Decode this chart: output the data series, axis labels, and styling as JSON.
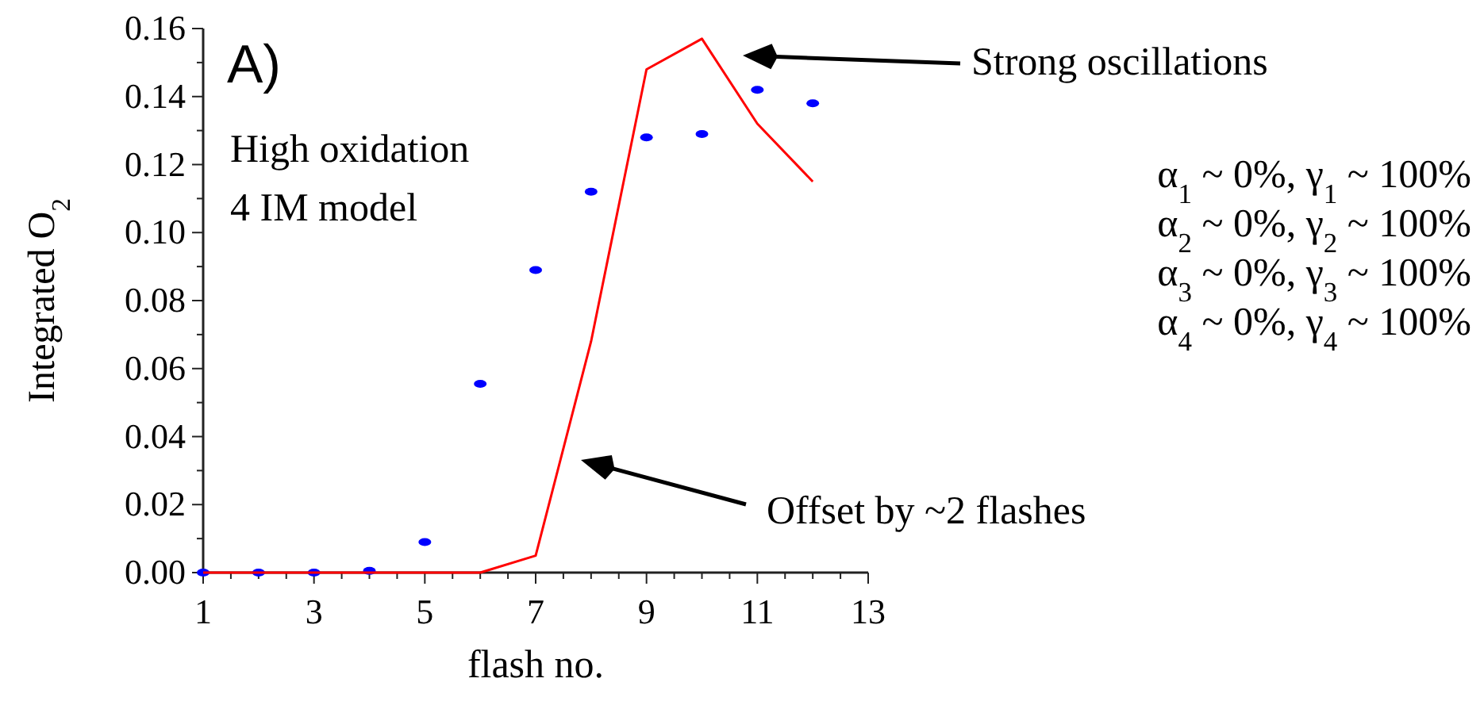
{
  "chart_data": {
    "type": "scatter",
    "xlabel": "flash no.",
    "ylabel": "Integrated O$_{2}$",
    "xlim": [
      1,
      13
    ],
    "ylim": [
      0,
      0.16
    ],
    "xticks": [
      1,
      {
        "value": 1.5,
        "label": null
      },
      {
        "value": 2,
        "label": null
      },
      {
        "value": 2.5,
        "label": null
      },
      3,
      {
        "value": 3.5,
        "label": null
      },
      {
        "value": 4,
        "label": null
      },
      {
        "value": 4.5,
        "label": null
      },
      5,
      {
        "value": 5.5,
        "label": null
      },
      {
        "value": 6,
        "label": null
      },
      {
        "value": 6.5,
        "label": null
      },
      7,
      {
        "value": 7.5,
        "label": null
      },
      {
        "value": 8,
        "label": null
      },
      {
        "value": 8.5,
        "label": null
      },
      9,
      {
        "value": 9.5,
        "label": null
      },
      {
        "value": 10,
        "label": null
      },
      {
        "value": 10.5,
        "label": null
      },
      11,
      {
        "value": 11.5,
        "label": null
      },
      {
        "value": 12,
        "label": null
      },
      {
        "value": 12.5,
        "label": null
      },
      13
    ],
    "yticks": [
      {
        "value": 0,
        "label": "0.00"
      },
      {
        "value": 0.01,
        "label": null
      },
      {
        "value": 0.02,
        "label": "0.02"
      },
      {
        "value": 0.03,
        "label": null
      },
      {
        "value": 0.04,
        "label": "0.04"
      },
      {
        "value": 0.05,
        "label": null
      },
      {
        "value": 0.06,
        "label": "0.06"
      },
      {
        "value": 0.07,
        "label": null
      },
      {
        "value": 0.08,
        "label": "0.08"
      },
      {
        "value": 0.09,
        "label": null
      },
      {
        "value": 0.1,
        "label": "0.10"
      },
      {
        "value": 0.11,
        "label": null
      },
      {
        "value": 0.12,
        "label": "0.12"
      },
      {
        "value": 0.13,
        "label": null
      },
      {
        "value": 0.14,
        "label": "0.14"
      },
      {
        "value": 0.15,
        "label": null
      },
      {
        "value": 0.16,
        "label": "0.16"
      }
    ],
    "x": [
      1,
      2,
      3,
      4,
      5,
      6,
      7,
      8,
      9,
      10,
      11,
      12
    ],
    "series": [
      {
        "marker": "circle",
        "color": "#0000ff",
        "values": [
          0,
          0,
          0,
          0.0005,
          0.009,
          0.0555,
          0.089,
          0.112,
          0.128,
          0.129,
          0.142,
          0.138
        ]
      },
      {
        "type": "line",
        "marker": "none",
        "color": "#ff0000",
        "values": [
          0,
          0,
          0,
          0,
          0,
          0,
          0.005,
          0.068,
          0.148,
          0.157,
          0.132,
          0.115
        ]
      }
    ],
    "annotations": [
      "A)",
      "High oxidation",
      "4 IM model",
      "Strong oscillations",
      "Offset by ~2 flashes",
      "α$_{1}$ ~ 0%, γ$_{1}$ ~ 100%",
      "α$_{2}$ ~ 0%, γ$_{2}$ ~ 100%",
      "α$_{3}$ ~ 0%, γ$_{3}$ ~ 100%",
      "α$_{4}$ ~ 0%, γ$_{4}$ ~ 100%"
    ]
  }
}
